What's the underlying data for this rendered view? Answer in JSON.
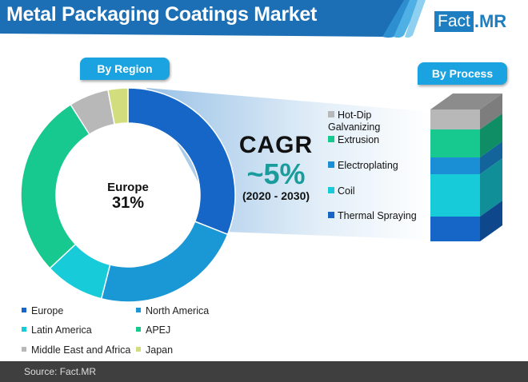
{
  "header": {
    "title": "Metal Packaging Coatings Market",
    "logo_fact": "Fact",
    "logo_mr": ".MR"
  },
  "region_tab": "By Region",
  "process_tab": "By Process",
  "center": {
    "label": "Europe",
    "value": "31%"
  },
  "cagr": {
    "label": "CAGR",
    "value": "~5%",
    "period": "(2020 - 2030)"
  },
  "process_legend": [
    {
      "label": "Hot-Dip Galvanizing",
      "color": "#b8b8b8"
    },
    {
      "label": "Extrusion",
      "color": "#17c98e"
    },
    {
      "label": "Electroplating",
      "color": "#1b8fd6"
    },
    {
      "label": "Coil",
      "color": "#17cbd8"
    },
    {
      "label": "Thermal Spraying",
      "color": "#1566c6"
    }
  ],
  "region_legend": [
    {
      "label": "Europe",
      "color": "#1566c6"
    },
    {
      "label": "North America",
      "color": "#1a98d5"
    },
    {
      "label": "Latin America",
      "color": "#17cbd8"
    },
    {
      "label": "APEJ",
      "color": "#17c98e"
    },
    {
      "label": "Middle East and Africa",
      "color": "#b8b8b8"
    },
    {
      "label": "Japan",
      "color": "#d2de7e"
    }
  ],
  "footer": {
    "source": "Source: Fact.MR"
  },
  "chart_data": [
    {
      "type": "pie",
      "title": "By Region",
      "categories": [
        "Europe",
        "North America",
        "Latin America",
        "APEJ",
        "Middle East and Africa",
        "Japan"
      ],
      "values": [
        31,
        23,
        9,
        28,
        6,
        3
      ],
      "colors": [
        "#1566c6",
        "#1a98d5",
        "#17cbd8",
        "#17c98e",
        "#b8b8b8",
        "#d2de7e"
      ],
      "annotation": "Europe 31%",
      "legend_position": "bottom"
    },
    {
      "type": "bar",
      "title": "By Process",
      "stacked": true,
      "categories": [
        "Thermal Spraying",
        "Coil",
        "Electroplating",
        "Extrusion",
        "Hot-Dip Galvanizing"
      ],
      "values": [
        17,
        30,
        12,
        20,
        15
      ],
      "colors": [
        "#1566c6",
        "#17cbd8",
        "#1b8fd6",
        "#17c98e",
        "#b8b8b8"
      ]
    }
  ]
}
